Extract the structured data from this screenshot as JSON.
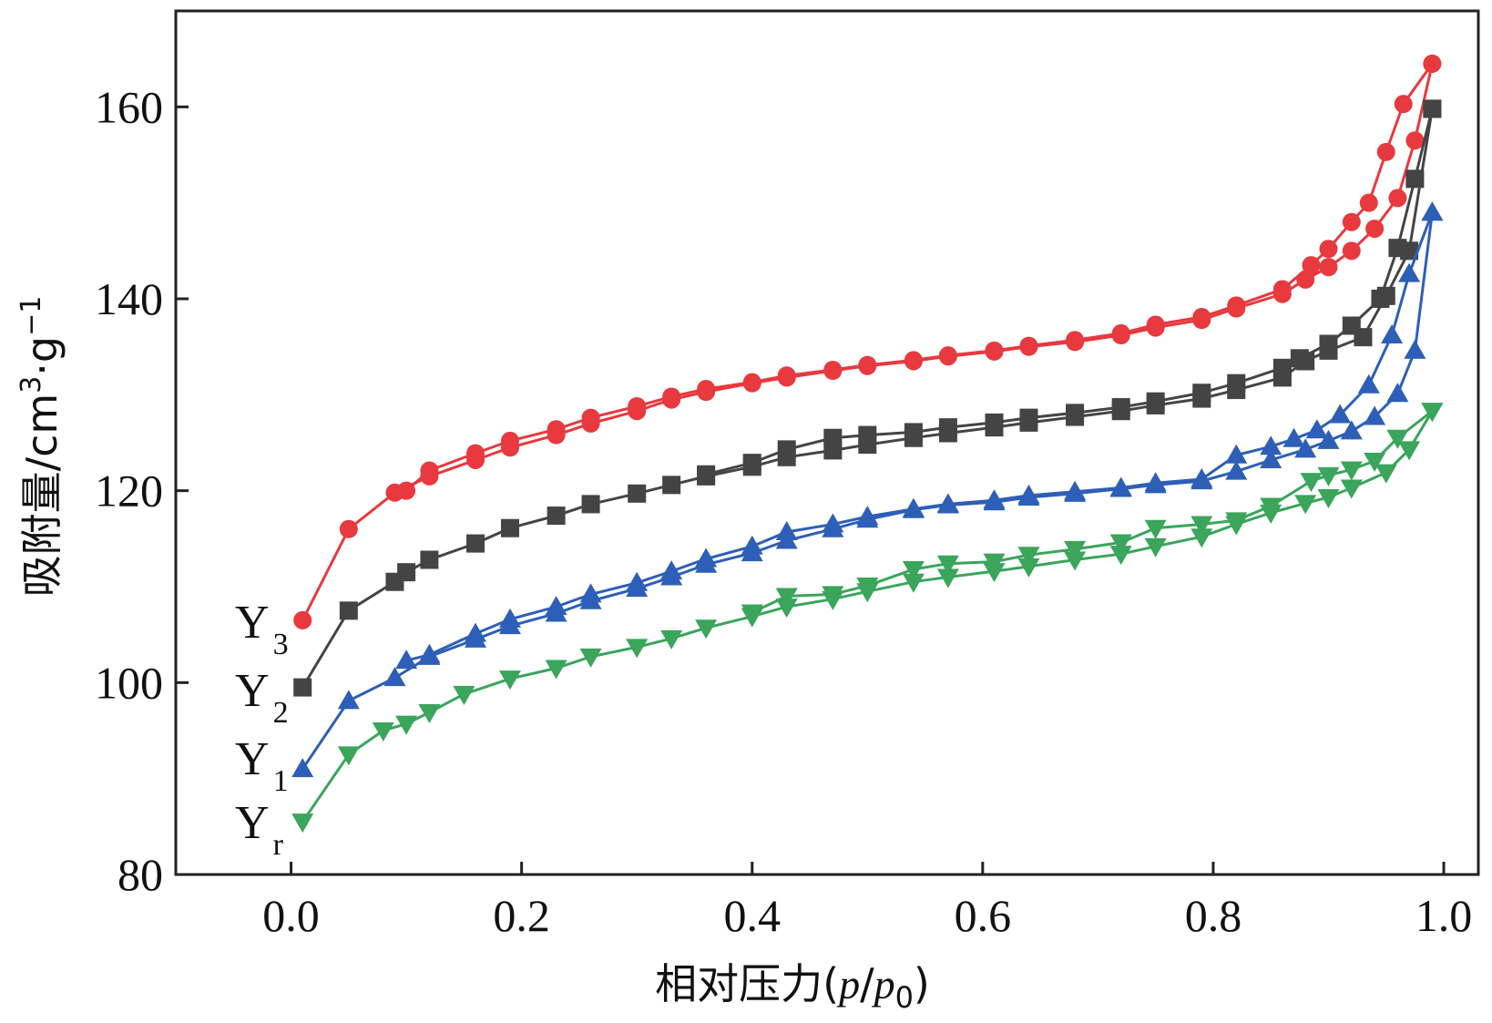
{
  "chart_data": {
    "type": "line",
    "title": "",
    "xlabel": {
      "prefix": "相对压力(",
      "p": "p",
      "slash": "/",
      "p0": "p",
      "p0_sub": "0",
      "suffix": ")"
    },
    "ylabel": {
      "prefix": "吸附量/cm",
      "sup1": "3",
      "mid": "·g",
      "sup2": "−1"
    },
    "xlim": [
      -0.1,
      1.03
    ],
    "ylim": [
      80,
      170
    ],
    "xticks": [
      0.0,
      0.2,
      0.4,
      0.6,
      0.8,
      1.0
    ],
    "xtick_labels": [
      "0.0",
      "0.2",
      "0.4",
      "0.6",
      "0.8",
      "1.0"
    ],
    "yticks": [
      80,
      100,
      120,
      140,
      160
    ],
    "ytick_labels": [
      "80",
      "100",
      "120",
      "140",
      "160"
    ],
    "grid": false,
    "legend": "inline-left",
    "series": [
      {
        "label_main": "Y",
        "label_sub": "3",
        "color": "#e8393f",
        "marker": "circle",
        "adsorption": [
          [
            0.01,
            106.5
          ],
          [
            0.05,
            116
          ],
          [
            0.09,
            119.8
          ],
          [
            0.12,
            121.5
          ],
          [
            0.16,
            123.2
          ],
          [
            0.19,
            124.5
          ],
          [
            0.23,
            125.8
          ],
          [
            0.26,
            127
          ],
          [
            0.3,
            128.3
          ],
          [
            0.33,
            129.5
          ],
          [
            0.36,
            130.3
          ],
          [
            0.4,
            131.2
          ],
          [
            0.43,
            131.8
          ],
          [
            0.47,
            132.5
          ],
          [
            0.5,
            133
          ],
          [
            0.54,
            133.5
          ],
          [
            0.57,
            134
          ],
          [
            0.61,
            134.5
          ],
          [
            0.64,
            135
          ],
          [
            0.68,
            135.5
          ],
          [
            0.72,
            136.2
          ],
          [
            0.75,
            137
          ],
          [
            0.79,
            137.8
          ],
          [
            0.82,
            139
          ],
          [
            0.86,
            140.5
          ],
          [
            0.88,
            142
          ],
          [
            0.9,
            143.3
          ],
          [
            0.92,
            145
          ],
          [
            0.94,
            147.3
          ],
          [
            0.96,
            150.5
          ],
          [
            0.975,
            156.5
          ],
          [
            0.99,
            164.5
          ]
        ],
        "desorption": [
          [
            0.99,
            164.5
          ],
          [
            0.965,
            160.3
          ],
          [
            0.95,
            155.3
          ],
          [
            0.935,
            150
          ],
          [
            0.92,
            148
          ],
          [
            0.9,
            145.2
          ],
          [
            0.885,
            143.5
          ],
          [
            0.86,
            141
          ],
          [
            0.82,
            139.3
          ],
          [
            0.79,
            138.1
          ],
          [
            0.75,
            137.3
          ],
          [
            0.72,
            136.4
          ],
          [
            0.68,
            135.7
          ],
          [
            0.64,
            135.1
          ],
          [
            0.61,
            134.6
          ],
          [
            0.57,
            134.1
          ],
          [
            0.54,
            133.6
          ],
          [
            0.5,
            133.1
          ],
          [
            0.47,
            132.6
          ],
          [
            0.43,
            132
          ],
          [
            0.4,
            131.3
          ],
          [
            0.36,
            130.6
          ],
          [
            0.33,
            129.8
          ],
          [
            0.3,
            128.8
          ],
          [
            0.26,
            127.6
          ],
          [
            0.23,
            126.4
          ],
          [
            0.19,
            125.2
          ],
          [
            0.16,
            123.9
          ],
          [
            0.12,
            122.1
          ],
          [
            0.1,
            120
          ]
        ]
      },
      {
        "label_main": "Y",
        "label_sub": "2",
        "color": "#444444",
        "marker": "square",
        "adsorption": [
          [
            0.01,
            99.5
          ],
          [
            0.05,
            107.5
          ],
          [
            0.09,
            110.5
          ],
          [
            0.1,
            111.5
          ],
          [
            0.12,
            112.8
          ],
          [
            0.16,
            114.5
          ],
          [
            0.19,
            116.1
          ],
          [
            0.23,
            117.4
          ],
          [
            0.26,
            118.6
          ],
          [
            0.3,
            119.7
          ],
          [
            0.33,
            120.6
          ],
          [
            0.36,
            121.5
          ],
          [
            0.4,
            122.5
          ],
          [
            0.43,
            123.5
          ],
          [
            0.47,
            124.2
          ],
          [
            0.5,
            124.8
          ],
          [
            0.54,
            125.5
          ],
          [
            0.57,
            126
          ],
          [
            0.61,
            126.6
          ],
          [
            0.64,
            127.1
          ],
          [
            0.68,
            127.7
          ],
          [
            0.72,
            128.3
          ],
          [
            0.75,
            128.9
          ],
          [
            0.79,
            129.6
          ],
          [
            0.82,
            130.5
          ],
          [
            0.86,
            131.8
          ],
          [
            0.88,
            133.5
          ],
          [
            0.9,
            134.6
          ],
          [
            0.93,
            136
          ],
          [
            0.95,
            140.3
          ],
          [
            0.97,
            145
          ],
          [
            0.99,
            159.8
          ]
        ],
        "desorption": [
          [
            0.99,
            159.8
          ],
          [
            0.975,
            152.5
          ],
          [
            0.96,
            145.3
          ],
          [
            0.945,
            140
          ],
          [
            0.92,
            137.2
          ],
          [
            0.9,
            135.3
          ],
          [
            0.875,
            133.8
          ],
          [
            0.86,
            132.8
          ],
          [
            0.82,
            131.2
          ],
          [
            0.79,
            130.2
          ],
          [
            0.75,
            129.3
          ],
          [
            0.72,
            128.7
          ],
          [
            0.68,
            128.1
          ],
          [
            0.64,
            127.6
          ],
          [
            0.61,
            127.1
          ],
          [
            0.57,
            126.6
          ],
          [
            0.54,
            126.1
          ],
          [
            0.5,
            125.8
          ],
          [
            0.47,
            125.5
          ],
          [
            0.43,
            124.3
          ],
          [
            0.4,
            122.9
          ],
          [
            0.36,
            121.7
          ]
        ]
      },
      {
        "label_main": "Y",
        "label_sub": "1",
        "color": "#2e5fb8",
        "marker": "triangle-up",
        "adsorption": [
          [
            0.01,
            91
          ],
          [
            0.05,
            98.1
          ],
          [
            0.09,
            100.5
          ],
          [
            0.12,
            102.7
          ],
          [
            0.16,
            104.5
          ],
          [
            0.19,
            105.9
          ],
          [
            0.23,
            107.2
          ],
          [
            0.26,
            108.5
          ],
          [
            0.3,
            109.8
          ],
          [
            0.33,
            111
          ],
          [
            0.36,
            112.3
          ],
          [
            0.4,
            113.5
          ],
          [
            0.43,
            114.8
          ],
          [
            0.47,
            116
          ],
          [
            0.5,
            117
          ],
          [
            0.54,
            118
          ],
          [
            0.57,
            118.5
          ],
          [
            0.61,
            118.8
          ],
          [
            0.64,
            119.3
          ],
          [
            0.68,
            119.7
          ],
          [
            0.72,
            120.2
          ],
          [
            0.75,
            120.6
          ],
          [
            0.79,
            121
          ],
          [
            0.82,
            122
          ],
          [
            0.85,
            123.2
          ],
          [
            0.88,
            124.3
          ],
          [
            0.9,
            125.2
          ],
          [
            0.92,
            126.2
          ],
          [
            0.94,
            127.7
          ],
          [
            0.96,
            130.1
          ],
          [
            0.975,
            134.6
          ],
          [
            0.99,
            149
          ]
        ],
        "desorption": [
          [
            0.99,
            149
          ],
          [
            0.97,
            142.6
          ],
          [
            0.955,
            136.2
          ],
          [
            0.935,
            131
          ],
          [
            0.91,
            127.9
          ],
          [
            0.89,
            126.3
          ],
          [
            0.87,
            125.4
          ],
          [
            0.85,
            124.6
          ],
          [
            0.82,
            123.7
          ],
          [
            0.79,
            121.2
          ],
          [
            0.75,
            120.8
          ],
          [
            0.72,
            120.3
          ],
          [
            0.68,
            119.9
          ],
          [
            0.64,
            119.5
          ],
          [
            0.61,
            119
          ],
          [
            0.57,
            118.6
          ],
          [
            0.54,
            118.1
          ],
          [
            0.5,
            117.3
          ],
          [
            0.47,
            116.5
          ],
          [
            0.43,
            115.7
          ],
          [
            0.4,
            114.2
          ],
          [
            0.36,
            112.9
          ],
          [
            0.33,
            111.6
          ],
          [
            0.3,
            110.4
          ],
          [
            0.26,
            109.2
          ],
          [
            0.23,
            107.9
          ],
          [
            0.19,
            106.6
          ],
          [
            0.16,
            105.1
          ],
          [
            0.12,
            102.9
          ],
          [
            0.1,
            102.3
          ]
        ]
      },
      {
        "label_main": "Y",
        "label_sub": "r",
        "color": "#3aa55b",
        "marker": "triangle-down",
        "adsorption": [
          [
            0.01,
            85.5
          ],
          [
            0.05,
            92.5
          ],
          [
            0.08,
            95
          ],
          [
            0.1,
            95.7
          ],
          [
            0.12,
            96.9
          ],
          [
            0.15,
            98.8
          ],
          [
            0.19,
            100.4
          ],
          [
            0.23,
            101.5
          ],
          [
            0.26,
            102.7
          ],
          [
            0.3,
            103.7
          ],
          [
            0.33,
            104.6
          ],
          [
            0.36,
            105.7
          ],
          [
            0.4,
            106.9
          ],
          [
            0.43,
            107.9
          ],
          [
            0.47,
            108.7
          ],
          [
            0.5,
            109.5
          ],
          [
            0.54,
            110.5
          ],
          [
            0.57,
            111
          ],
          [
            0.61,
            111.6
          ],
          [
            0.64,
            112.1
          ],
          [
            0.68,
            112.8
          ],
          [
            0.72,
            113.4
          ],
          [
            0.75,
            114.2
          ],
          [
            0.79,
            115.2
          ],
          [
            0.82,
            116.5
          ],
          [
            0.85,
            117.7
          ],
          [
            0.88,
            118.7
          ],
          [
            0.9,
            119.3
          ],
          [
            0.92,
            120.3
          ],
          [
            0.95,
            121.9
          ],
          [
            0.97,
            124.3
          ],
          [
            0.99,
            128.3
          ]
        ],
        "desorption": [
          [
            0.99,
            128.3
          ],
          [
            0.96,
            125.5
          ],
          [
            0.94,
            123.1
          ],
          [
            0.92,
            122.2
          ],
          [
            0.9,
            121.6
          ],
          [
            0.885,
            121
          ],
          [
            0.85,
            118.4
          ],
          [
            0.82,
            116.9
          ],
          [
            0.79,
            116.5
          ],
          [
            0.75,
            116.1
          ],
          [
            0.72,
            114.6
          ],
          [
            0.68,
            113.9
          ],
          [
            0.64,
            113.3
          ],
          [
            0.61,
            112.6
          ],
          [
            0.57,
            112.4
          ],
          [
            0.54,
            111.8
          ],
          [
            0.5,
            110.1
          ],
          [
            0.47,
            109.2
          ],
          [
            0.43,
            109
          ],
          [
            0.4,
            107.3
          ]
        ]
      }
    ]
  }
}
